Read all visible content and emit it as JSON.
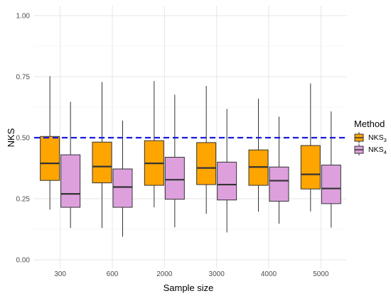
{
  "chart_data": {
    "type": "boxplot",
    "xlabel": "Sample size",
    "ylabel": "NKS",
    "ylim": [
      0,
      1
    ],
    "yticks": [
      "0.00",
      "0.25",
      "0.50",
      "0.75",
      "1.00"
    ],
    "categories": [
      "300",
      "600",
      "2000",
      "3000",
      "4000",
      "5000"
    ],
    "reference_line": {
      "y": 0.5,
      "color": "#1a1adb",
      "style": "dashed"
    },
    "grid": true,
    "legend": {
      "title": "Method",
      "position": "right",
      "entries": [
        {
          "base": "NKS",
          "sub": "3",
          "color": "#FFA500"
        },
        {
          "base": "NKS",
          "sub": "4",
          "color": "#DDA0DD"
        }
      ]
    },
    "series": [
      {
        "name": "NKS3",
        "color": "#FFA500",
        "boxes": [
          {
            "min": 0.205,
            "q1": 0.325,
            "median": 0.395,
            "q3": 0.505,
            "max": 0.752
          },
          {
            "min": 0.13,
            "q1": 0.315,
            "median": 0.382,
            "q3": 0.482,
            "max": 0.728
          },
          {
            "min": 0.215,
            "q1": 0.305,
            "median": 0.395,
            "q3": 0.488,
            "max": 0.732
          },
          {
            "min": 0.188,
            "q1": 0.308,
            "median": 0.376,
            "q3": 0.48,
            "max": 0.712
          },
          {
            "min": 0.197,
            "q1": 0.305,
            "median": 0.38,
            "q3": 0.45,
            "max": 0.66
          },
          {
            "min": 0.198,
            "q1": 0.29,
            "median": 0.35,
            "q3": 0.468,
            "max": 0.722
          }
        ]
      },
      {
        "name": "NKS4",
        "color": "#DDA0DD",
        "boxes": [
          {
            "min": 0.13,
            "q1": 0.215,
            "median": 0.27,
            "q3": 0.43,
            "max": 0.647
          },
          {
            "min": 0.095,
            "q1": 0.215,
            "median": 0.298,
            "q3": 0.372,
            "max": 0.57
          },
          {
            "min": 0.133,
            "q1": 0.248,
            "median": 0.328,
            "q3": 0.42,
            "max": 0.676
          },
          {
            "min": 0.112,
            "q1": 0.245,
            "median": 0.308,
            "q3": 0.4,
            "max": 0.618
          },
          {
            "min": 0.148,
            "q1": 0.24,
            "median": 0.324,
            "q3": 0.38,
            "max": 0.586
          },
          {
            "min": 0.132,
            "q1": 0.23,
            "median": 0.292,
            "q3": 0.388,
            "max": 0.608
          }
        ]
      }
    ]
  }
}
